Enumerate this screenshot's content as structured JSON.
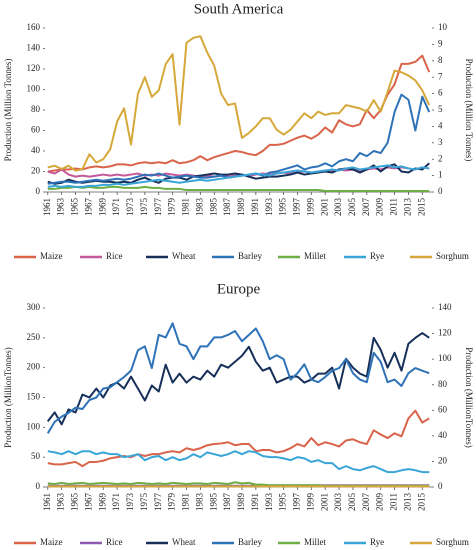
{
  "chart_data": [
    {
      "type": "line",
      "title": "South America",
      "y_label": "Production (Million Tonnes)",
      "y2_label": "Production (Million Tonnes)",
      "x": [
        1961,
        1962,
        1963,
        1964,
        1965,
        1966,
        1967,
        1968,
        1969,
        1970,
        1971,
        1972,
        1973,
        1974,
        1975,
        1976,
        1977,
        1978,
        1979,
        1980,
        1981,
        1982,
        1983,
        1984,
        1985,
        1986,
        1987,
        1988,
        1989,
        1990,
        1991,
        1992,
        1993,
        1994,
        1995,
        1996,
        1997,
        1998,
        1999,
        2000,
        2001,
        2002,
        2003,
        2004,
        2005,
        2006,
        2007,
        2008,
        2009,
        2010,
        2011,
        2012,
        2013,
        2014,
        2015,
        2016
      ],
      "xlim": [
        1960.6,
        2016.4
      ],
      "xticks": [
        1961,
        1963,
        1965,
        1967,
        1969,
        1971,
        1973,
        1975,
        1977,
        1979,
        1981,
        1983,
        1985,
        1987,
        1989,
        1991,
        1993,
        1995,
        1997,
        1999,
        2001,
        2003,
        2005,
        2007,
        2009,
        2011,
        2013,
        2015
      ],
      "ylim": [
        0,
        160
      ],
      "yticks": [
        0,
        20,
        40,
        60,
        80,
        100,
        120,
        140,
        160
      ],
      "y2lim": [
        0,
        10
      ],
      "y2ticks": [
        0,
        1,
        2,
        3,
        4,
        5,
        6,
        7,
        8,
        9,
        10
      ],
      "series": [
        {
          "name": "Maize",
          "color": "#d9644a",
          "values": [
            20,
            21,
            22,
            22,
            23,
            22,
            24,
            25,
            24,
            25,
            27,
            27,
            26,
            28,
            29,
            28,
            29,
            28,
            31,
            28,
            29,
            31,
            35,
            31,
            34,
            36,
            38,
            40,
            39,
            37,
            36,
            40,
            46,
            46,
            47,
            50,
            53,
            55,
            52,
            56,
            63,
            58,
            70,
            66,
            64,
            66,
            80,
            72,
            80,
            95,
            105,
            125,
            125,
            127,
            133,
            117
          ]
        },
        {
          "name": "Rice",
          "color": "#c4589a",
          "values": [
            20,
            18,
            22,
            17,
            15,
            16,
            15,
            16,
            17,
            16,
            17,
            16,
            17,
            18,
            16,
            17,
            16,
            18,
            17,
            16,
            17,
            16,
            15,
            16,
            15,
            16,
            15,
            16,
            17,
            16,
            17,
            18,
            17,
            18,
            19,
            18,
            19,
            20,
            19,
            20,
            21,
            20,
            22,
            21,
            22,
            21,
            22,
            23,
            22,
            24,
            23,
            24,
            23,
            22,
            24,
            23
          ]
        },
        {
          "name": "Wheat",
          "color": "#17305a",
          "values": [
            10,
            8,
            9,
            12,
            10,
            9,
            10,
            11,
            10,
            10,
            9,
            10,
            9,
            12,
            14,
            11,
            9,
            13,
            14,
            14,
            12,
            15,
            16,
            17,
            18,
            17,
            17,
            18,
            17,
            15,
            13,
            14,
            15,
            15,
            16,
            17,
            19,
            17,
            18,
            19,
            20,
            19,
            22,
            23,
            22,
            19,
            22,
            26,
            20,
            25,
            27,
            20,
            19,
            23,
            22,
            28
          ]
        },
        {
          "name": "Barley",
          "color": "#2e72b8",
          "values": [
            8,
            9,
            10,
            10,
            9,
            10,
            11,
            12,
            11,
            12,
            13,
            12,
            13,
            15,
            17,
            16,
            18,
            16,
            14,
            15,
            16,
            15,
            14,
            14,
            15,
            16,
            14,
            15,
            16,
            17,
            18,
            16,
            19,
            20,
            22,
            24,
            26,
            22,
            24,
            25,
            28,
            25,
            30,
            32,
            30,
            38,
            35,
            40,
            38,
            48,
            78,
            95,
            90,
            60,
            93,
            78
          ]
        },
        {
          "name": "Millet",
          "color": "#6fae45",
          "values": [
            3,
            3,
            4,
            4,
            5,
            4,
            5,
            4,
            4,
            5,
            5,
            4,
            4,
            4,
            5,
            4,
            4,
            3,
            3,
            3,
            2,
            2,
            2,
            2,
            2,
            2,
            2,
            2,
            2,
            2,
            2,
            2,
            2,
            2,
            2,
            2,
            2,
            2,
            2,
            2,
            1,
            1,
            1,
            1,
            1,
            1,
            1,
            1,
            1,
            1,
            1,
            1,
            1,
            1,
            1,
            1
          ]
        },
        {
          "name": "Rye",
          "color": "#3aa6d8",
          "values": [
            5,
            6,
            5,
            6,
            5,
            5,
            6,
            6,
            7,
            7,
            8,
            7,
            8,
            9,
            10,
            11,
            12,
            11,
            10,
            9,
            10,
            11,
            12,
            11,
            12,
            13,
            14,
            15,
            16,
            17,
            18,
            17,
            16,
            18,
            19,
            20,
            21,
            20,
            19,
            20,
            21,
            22,
            21,
            23,
            24,
            22,
            23,
            24,
            25,
            26,
            24,
            25,
            23,
            22,
            24,
            23
          ]
        },
        {
          "name": "Sorghum",
          "color": "#d6a83a",
          "axis": "y2",
          "values": [
            1.5,
            1.6,
            1.4,
            1.6,
            1.3,
            1.4,
            2.3,
            1.8,
            2.0,
            2.6,
            4.3,
            5.1,
            2.9,
            6.0,
            7.0,
            5.8,
            6.2,
            7.8,
            8.4,
            4.1,
            9.1,
            9.4,
            9.5,
            8.5,
            7.7,
            6.0,
            5.3,
            5.4,
            3.3,
            3.6,
            4.0,
            4.5,
            4.5,
            3.8,
            3.5,
            3.8,
            4.3,
            4.8,
            4.5,
            4.9,
            4.7,
            4.8,
            4.8,
            5.3,
            5.2,
            5.1,
            4.9,
            5.6,
            4.9,
            6.1,
            7.4,
            7.3,
            7.1,
            6.8,
            6.2,
            5.3
          ]
        }
      ]
    },
    {
      "type": "line",
      "title": "Europe",
      "y_label": "Production (MillionTonnes)",
      "y2_label": "Production (MillionTonnes)",
      "x": [
        1961,
        1962,
        1963,
        1964,
        1965,
        1966,
        1967,
        1968,
        1969,
        1970,
        1971,
        1972,
        1973,
        1974,
        1975,
        1976,
        1977,
        1978,
        1979,
        1980,
        1981,
        1982,
        1983,
        1984,
        1985,
        1986,
        1987,
        1988,
        1989,
        1990,
        1991,
        1992,
        1993,
        1994,
        1995,
        1996,
        1997,
        1998,
        1999,
        2000,
        2001,
        2002,
        2003,
        2004,
        2005,
        2006,
        2007,
        2008,
        2009,
        2010,
        2011,
        2012,
        2013,
        2014,
        2015,
        2016
      ],
      "xlim": [
        1960.6,
        2016.4
      ],
      "xticks": [
        1961,
        1963,
        1965,
        1967,
        1969,
        1971,
        1973,
        1975,
        1977,
        1979,
        1981,
        1983,
        1985,
        1987,
        1989,
        1991,
        1993,
        1995,
        1997,
        1999,
        2001,
        2003,
        2005,
        2007,
        2009,
        2011,
        2013,
        2015
      ],
      "ylim": [
        0,
        300
      ],
      "yticks": [
        0,
        50,
        100,
        150,
        200,
        250,
        300
      ],
      "y2lim": [
        0,
        140
      ],
      "y2ticks": [
        0,
        20,
        40,
        60,
        80,
        100,
        120,
        140
      ],
      "series": [
        {
          "name": "Maize",
          "color": "#d9644a",
          "values": [
            40,
            38,
            38,
            40,
            42,
            35,
            42,
            42,
            44,
            48,
            50,
            52,
            50,
            55,
            52,
            55,
            55,
            58,
            60,
            58,
            65,
            62,
            65,
            70,
            72,
            73,
            75,
            70,
            72,
            72,
            60,
            62,
            62,
            58,
            60,
            65,
            72,
            68,
            82,
            70,
            75,
            72,
            68,
            78,
            80,
            75,
            72,
            95,
            88,
            82,
            90,
            85,
            115,
            128,
            108,
            115
          ]
        },
        {
          "name": "Rice",
          "color": "#8e5ab0",
          "values": [
            2,
            2,
            2,
            2,
            2,
            2,
            2,
            2,
            2,
            2,
            2,
            2,
            2,
            2,
            2,
            2,
            2,
            2,
            2,
            2,
            2,
            2,
            2,
            2,
            2,
            2,
            2,
            2,
            2,
            2,
            3,
            3,
            3,
            3,
            3,
            3,
            3,
            3,
            3,
            3,
            3,
            3,
            3,
            3,
            3,
            3,
            3,
            3,
            3,
            3,
            3,
            3,
            3,
            3,
            3,
            3
          ]
        },
        {
          "name": "Wheat",
          "color": "#17305a",
          "values": [
            110,
            125,
            105,
            130,
            125,
            155,
            150,
            165,
            150,
            170,
            175,
            165,
            185,
            165,
            145,
            170,
            160,
            205,
            175,
            190,
            175,
            185,
            180,
            195,
            185,
            205,
            200,
            210,
            220,
            235,
            210,
            195,
            200,
            175,
            180,
            185,
            185,
            175,
            180,
            190,
            190,
            200,
            165,
            215,
            200,
            190,
            185,
            250,
            230,
            200,
            225,
            195,
            240,
            250,
            258,
            250
          ]
        },
        {
          "name": "Barley",
          "color": "#2e72b8",
          "axis": "y2",
          "values": [
            42,
            51,
            55,
            58,
            62,
            61,
            68,
            70,
            77,
            78,
            82,
            86,
            91,
            107,
            110,
            93,
            119,
            117,
            128,
            112,
            110,
            100,
            110,
            110,
            117,
            117,
            119,
            122,
            114,
            119,
            124,
            114,
            100,
            103,
            100,
            84,
            89,
            96,
            84,
            82,
            86,
            91,
            93,
            100,
            89,
            84,
            82,
            105,
            98,
            82,
            84,
            79,
            89,
            93,
            91,
            89
          ]
        },
        {
          "name": "Millet",
          "color": "#6fae45",
          "values": [
            6,
            5,
            7,
            5,
            6,
            7,
            5,
            6,
            7,
            6,
            5,
            6,
            5,
            7,
            6,
            5,
            6,
            5,
            7,
            6,
            5,
            6,
            6,
            5,
            7,
            6,
            5,
            8,
            6,
            7,
            4,
            4,
            3,
            3,
            3,
            3,
            3,
            3,
            3,
            3,
            2,
            2,
            2,
            2,
            2,
            2,
            2,
            2,
            2,
            2,
            2,
            2,
            2,
            2,
            2,
            2
          ]
        },
        {
          "name": "Rye",
          "color": "#3aa6d8",
          "values": [
            60,
            58,
            55,
            60,
            55,
            60,
            60,
            55,
            58,
            55,
            55,
            50,
            52,
            55,
            45,
            50,
            52,
            45,
            50,
            45,
            48,
            55,
            50,
            58,
            55,
            52,
            55,
            60,
            55,
            60,
            58,
            52,
            50,
            50,
            48,
            45,
            50,
            48,
            42,
            45,
            40,
            40,
            30,
            35,
            30,
            28,
            32,
            35,
            30,
            25,
            25,
            28,
            30,
            28,
            25,
            25
          ]
        },
        {
          "name": "Sorghum",
          "color": "#d6a83a",
          "values": [
            1,
            1,
            1,
            1,
            1,
            1,
            1,
            1,
            1,
            1,
            1,
            1,
            1,
            1,
            1,
            1,
            1,
            1,
            1,
            1,
            1,
            1,
            1,
            1,
            1,
            1,
            1,
            1,
            1,
            1,
            1,
            1,
            1,
            1,
            1,
            1,
            1,
            1,
            1,
            1,
            1,
            1,
            1,
            1,
            1,
            1,
            1,
            1,
            1,
            1,
            1,
            1,
            1,
            1,
            1,
            1
          ]
        }
      ]
    }
  ]
}
